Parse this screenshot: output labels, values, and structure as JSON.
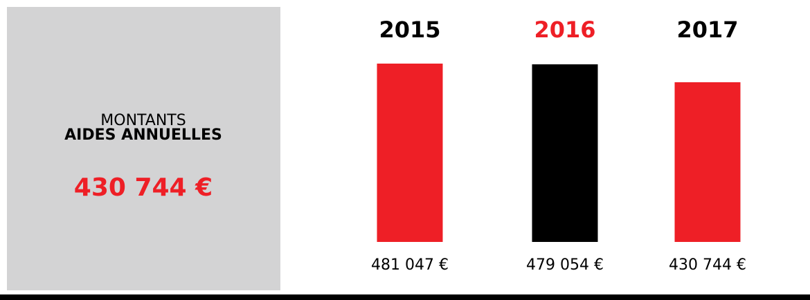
{
  "panel": {
    "label": "MONTANTS",
    "label_bold": "AIDES ANNUELLES",
    "amount": "430 744 €"
  },
  "chart_data": {
    "type": "bar",
    "categories": [
      "2015",
      "2016",
      "2017"
    ],
    "category_colors": [
      "#000000",
      "#ee1f26",
      "#000000"
    ],
    "values": [
      481047,
      479054,
      430744
    ],
    "value_labels": [
      "481 047 €",
      "479 054 €",
      "430 744 €"
    ],
    "colors": [
      "#ee1f26",
      "#000000",
      "#ee1f26"
    ]
  }
}
